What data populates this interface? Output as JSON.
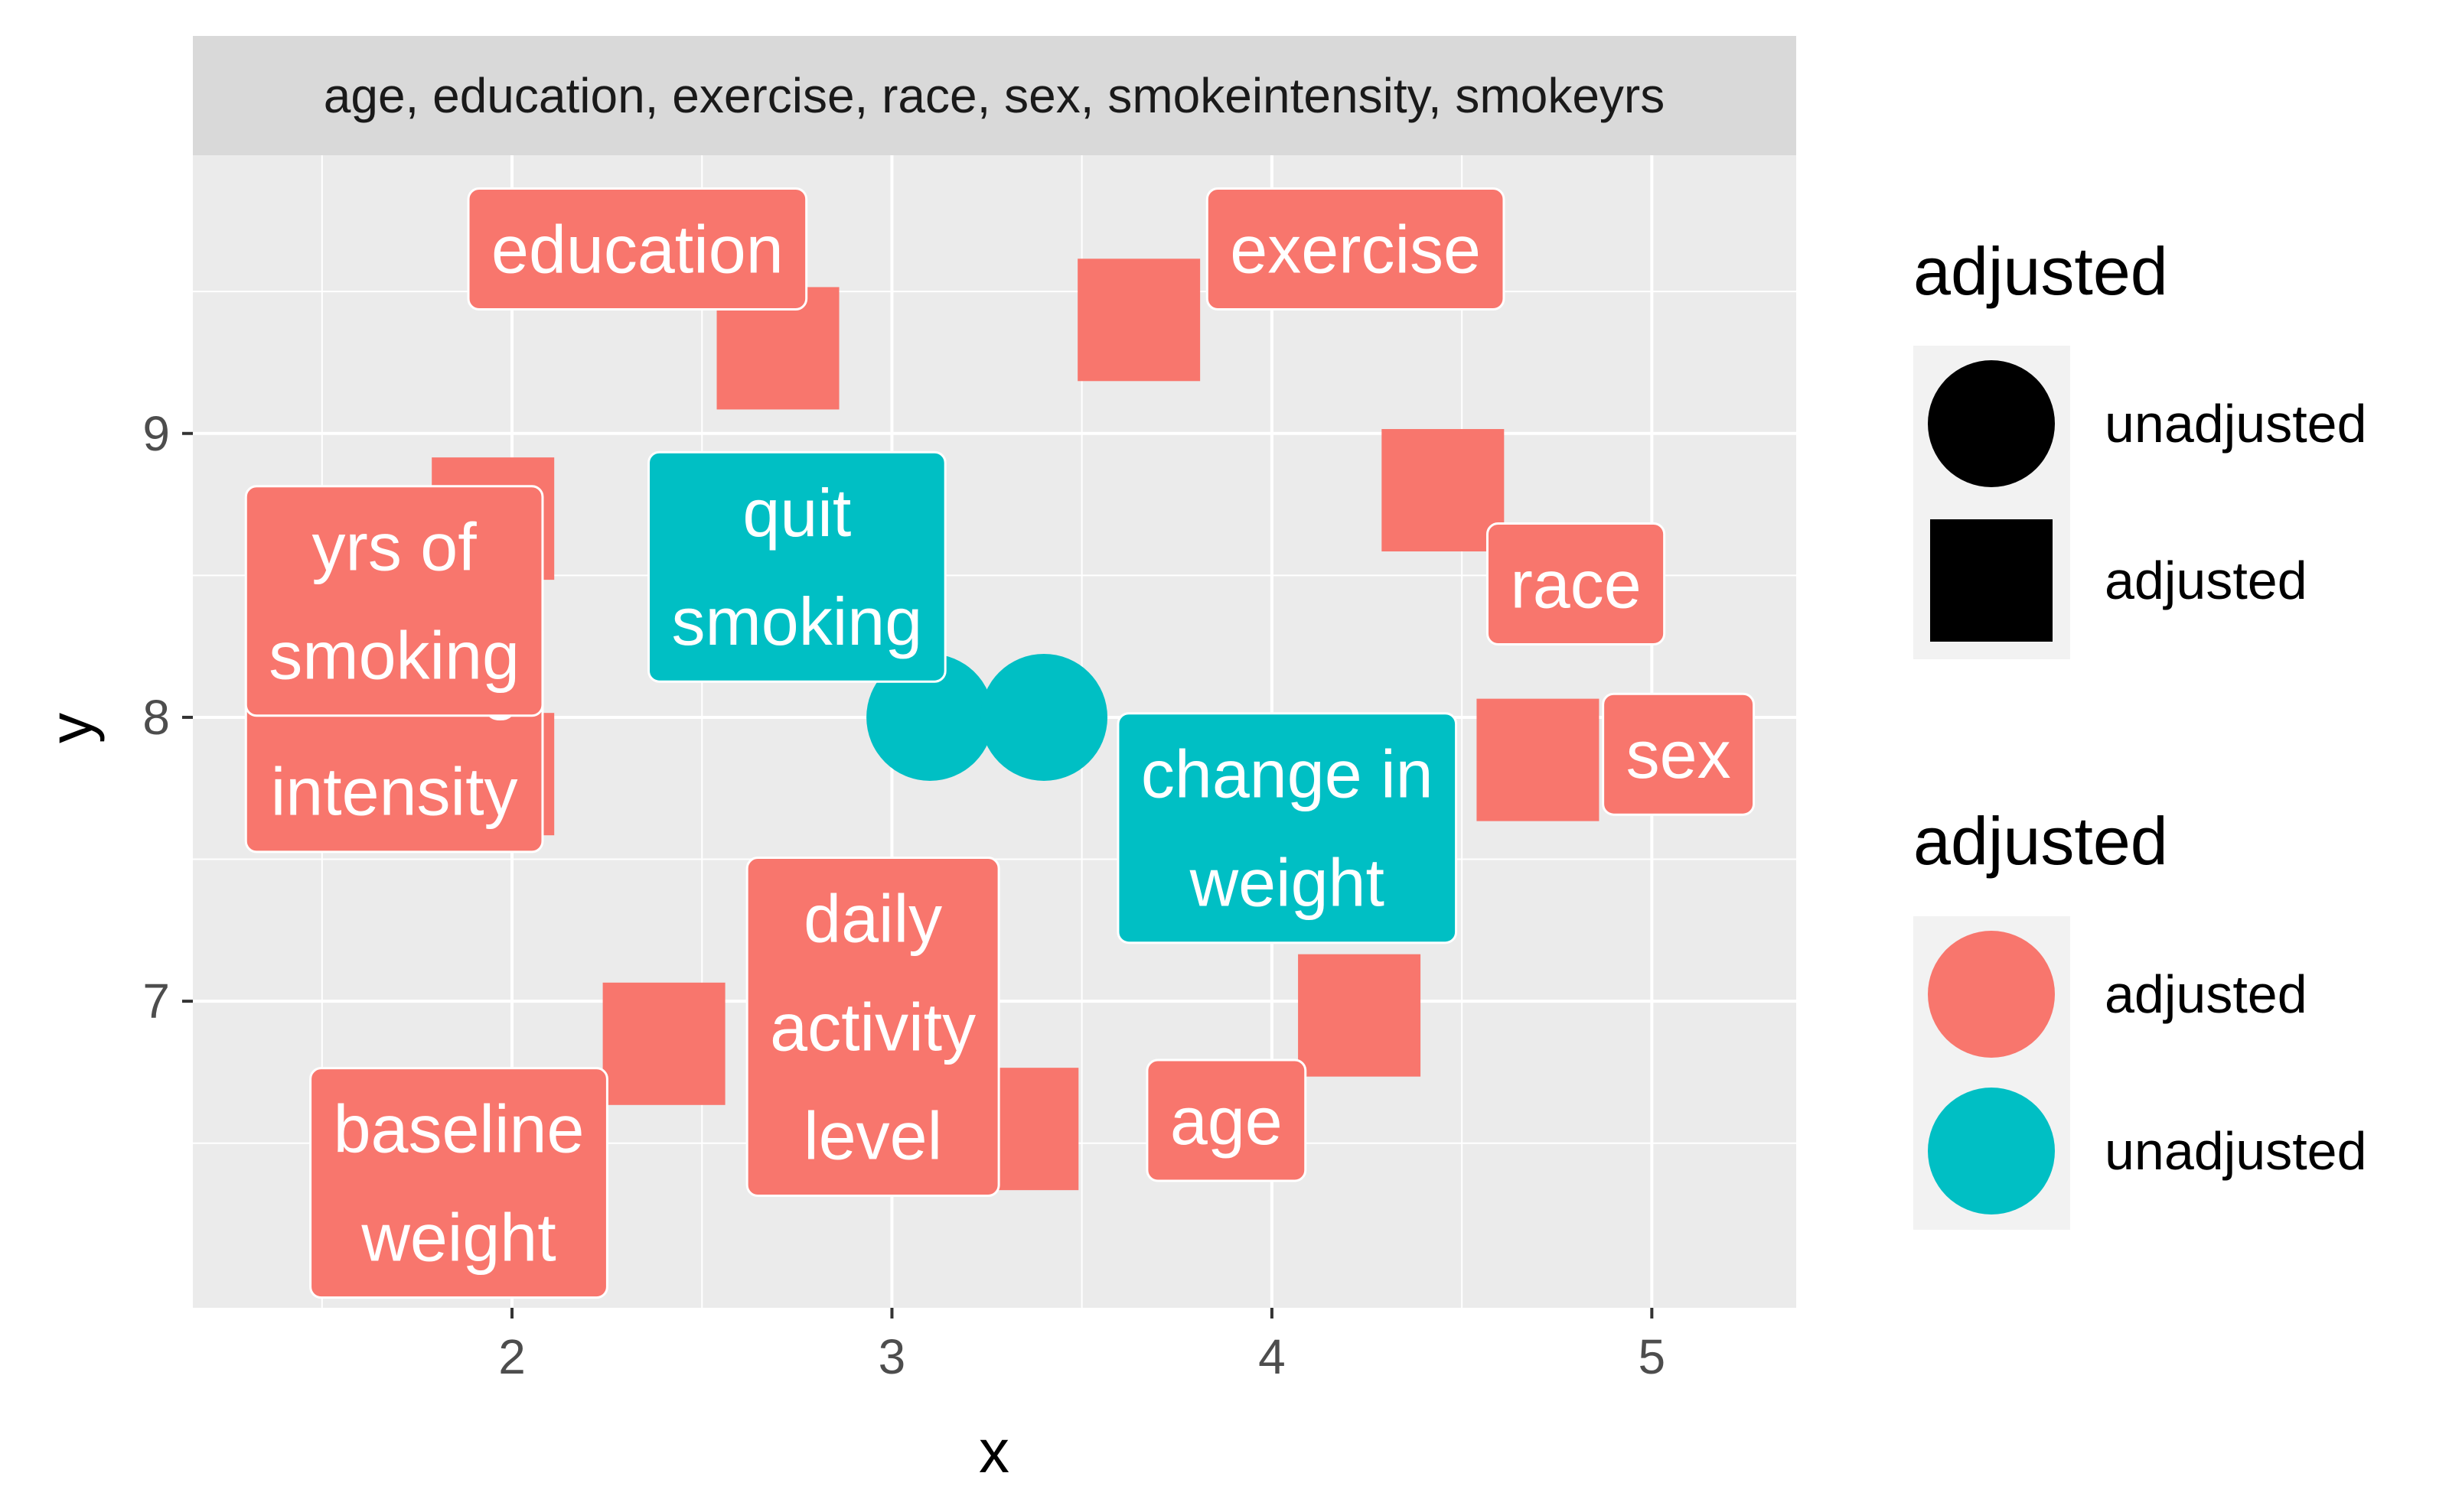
{
  "chart_data": {
    "type": "scatter",
    "facet_strip": "age, education, exercise, race, sex, smokeintensity, smokeyrs",
    "xlabel": "x",
    "ylabel": "y",
    "xlim": [
      1.16,
      5.38
    ],
    "ylim": [
      5.92,
      9.98
    ],
    "x_ticks": [
      2,
      3,
      4,
      5
    ],
    "y_ticks": [
      7,
      8,
      9
    ],
    "grid": true,
    "colors": {
      "adjusted": "#F8766D",
      "unadjusted": "#00BFC4",
      "panel": "#EBEBEB",
      "strip": "#D9D9D9"
    },
    "points": [
      {
        "x": 2.7,
        "y": 9.3,
        "shape": "square",
        "group": "adjusted"
      },
      {
        "x": 3.65,
        "y": 9.4,
        "shape": "square",
        "group": "adjusted"
      },
      {
        "x": 4.45,
        "y": 8.8,
        "shape": "square",
        "group": "adjusted"
      },
      {
        "x": 1.95,
        "y": 8.7,
        "shape": "square",
        "group": "adjusted"
      },
      {
        "x": 1.95,
        "y": 7.8,
        "shape": "square",
        "group": "adjusted"
      },
      {
        "x": 4.7,
        "y": 7.85,
        "shape": "square",
        "group": "adjusted"
      },
      {
        "x": 2.4,
        "y": 6.85,
        "shape": "square",
        "group": "adjusted"
      },
      {
        "x": 4.23,
        "y": 6.95,
        "shape": "square",
        "group": "adjusted"
      },
      {
        "x": 3.33,
        "y": 6.55,
        "shape": "square",
        "group": "adjusted"
      },
      {
        "x": 3.1,
        "y": 8.0,
        "shape": "circle",
        "group": "unadjusted"
      },
      {
        "x": 3.4,
        "y": 8.0,
        "shape": "circle",
        "group": "unadjusted"
      }
    ],
    "labels": [
      {
        "lines": [
          "education"
        ],
        "x": 2.33,
        "y": 9.65,
        "group": "adjusted"
      },
      {
        "lines": [
          "exercise"
        ],
        "x": 4.22,
        "y": 9.65,
        "group": "adjusted"
      },
      {
        "lines": [
          "race"
        ],
        "x": 4.8,
        "y": 8.47,
        "group": "adjusted"
      },
      {
        "lines": [
          "sex"
        ],
        "x": 5.07,
        "y": 7.87,
        "group": "adjusted"
      },
      {
        "lines": [
          "age"
        ],
        "x": 3.88,
        "y": 6.58,
        "group": "adjusted"
      },
      {
        "lines": [
          "baseline",
          "weight"
        ],
        "x": 1.86,
        "y": 6.36,
        "group": "adjusted"
      },
      {
        "lines": [
          "daily",
          "activity",
          "level"
        ],
        "x": 2.95,
        "y": 6.91,
        "group": "adjusted"
      },
      {
        "lines": [
          "smoking",
          "intensity"
        ],
        "x": 1.69,
        "y": 7.93,
        "group": "adjusted"
      },
      {
        "lines": [
          "yrs of",
          "smoking"
        ],
        "x": 1.69,
        "y": 8.41,
        "group": "adjusted"
      },
      {
        "lines": [
          "quit",
          "smoking"
        ],
        "x": 2.75,
        "y": 8.53,
        "group": "unadjusted"
      },
      {
        "lines": [
          "change in",
          "weight"
        ],
        "x": 4.04,
        "y": 7.61,
        "group": "unadjusted"
      }
    ],
    "legends": [
      {
        "title": "adjusted",
        "items": [
          {
            "label": "unadjusted",
            "symbol": "circle",
            "color": "#000000"
          },
          {
            "label": "adjusted",
            "symbol": "square",
            "color": "#000000"
          }
        ]
      },
      {
        "title": "adjusted",
        "items": [
          {
            "label": "adjusted",
            "symbol": "circle",
            "color": "#F8766D"
          },
          {
            "label": "unadjusted",
            "symbol": "circle",
            "color": "#00BFC4"
          }
        ]
      }
    ]
  }
}
